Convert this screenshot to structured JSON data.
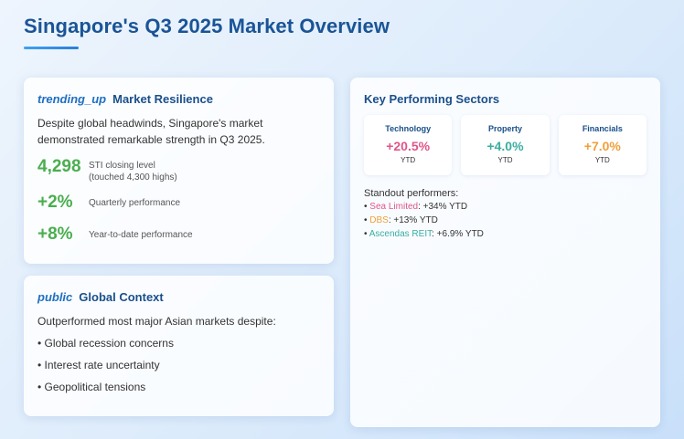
{
  "page": {
    "title": "Singapore's Q3 2025 Market Overview"
  },
  "colors": {
    "title": "#1a5496",
    "green": "#4bae4f",
    "pink": "#e0558a",
    "teal": "#3aaea0",
    "orange": "#f0a03a"
  },
  "resilience": {
    "icon": "trending_up",
    "heading": "Market Resilience",
    "description": "Despite global headwinds, Singapore's market demonstrated remarkable strength in Q3 2025.",
    "stats": [
      {
        "value": "4,298",
        "label_line1": "STI closing level",
        "label_line2": "(touched 4,300 highs)"
      },
      {
        "value": "+2%",
        "label": "Quarterly performance"
      },
      {
        "value": "+8%",
        "label": "Year-to-date performance"
      }
    ]
  },
  "global": {
    "icon": "public",
    "heading": "Global Context",
    "intro": "Outperformed most major Asian markets despite:",
    "bullets": [
      "• Global recession concerns",
      "• Interest rate uncertainty",
      "• Geopolitical tensions"
    ]
  },
  "sectors": {
    "heading": "Key Performing Sectors",
    "items": [
      {
        "name": "Technology",
        "value": "+20.5%",
        "sub": "YTD",
        "color": "#e0558a"
      },
      {
        "name": "Property",
        "value": "+4.0%",
        "sub": "YTD",
        "color": "#3aaea0"
      },
      {
        "name": "Financials",
        "value": "+7.0%",
        "sub": "YTD",
        "color": "#f0a03a"
      }
    ],
    "standout_title": "Standout performers:",
    "standouts": [
      {
        "bullet": "• ",
        "name": "Sea Limited",
        "detail": ": +34% YTD",
        "color": "#e0558a"
      },
      {
        "bullet": "• ",
        "name": "DBS",
        "detail": ": +13% YTD",
        "color": "#f0a03a"
      },
      {
        "bullet": "• ",
        "name": "Ascendas REIT",
        "detail": ": +6.9% YTD",
        "color": "#3aaea0"
      }
    ]
  }
}
